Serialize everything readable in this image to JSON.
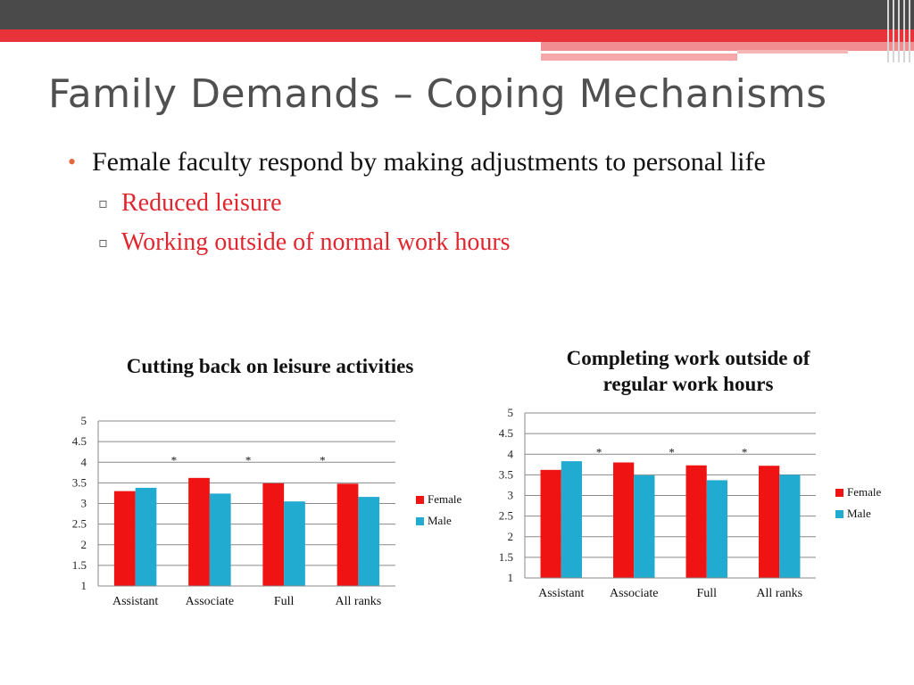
{
  "slide": {
    "title": "Family Demands – Coping Mechanisms",
    "bullet": "Female faculty respond by making adjustments to personal life",
    "sub_bullets": [
      "Reduced leisure",
      "Working outside of normal work hours"
    ]
  },
  "colors": {
    "female": "#ef1313",
    "male": "#22abd0",
    "accent_red": "#e0262f",
    "bullet_orange": "#e5663c"
  },
  "chart_data": [
    {
      "type": "bar",
      "title": "Cutting back on leisure activities",
      "categories": [
        "Assistant",
        "Associate",
        "Full",
        "All ranks"
      ],
      "series": [
        {
          "name": "Female",
          "values": [
            3.3,
            3.62,
            3.49,
            3.48
          ]
        },
        {
          "name": "Male",
          "values": [
            3.38,
            3.24,
            3.05,
            3.16
          ]
        }
      ],
      "ylim": [
        1,
        5
      ],
      "yticks": [
        "1",
        "1.5",
        "2",
        "2.5",
        "3",
        "3.5",
        "4",
        "4.5",
        "5"
      ],
      "annotations": [
        "",
        "*",
        "*",
        "*"
      ],
      "legend": "right",
      "grid": true
    },
    {
      "type": "bar",
      "title": "Completing work outside of regular work hours",
      "categories": [
        "Assistant",
        "Associate",
        "Full",
        "All ranks"
      ],
      "series": [
        {
          "name": "Female",
          "values": [
            3.62,
            3.8,
            3.73,
            3.72
          ]
        },
        {
          "name": "Male",
          "values": [
            3.83,
            3.49,
            3.37,
            3.5
          ]
        }
      ],
      "ylim": [
        1,
        5
      ],
      "yticks": [
        "1",
        "1.5",
        "2",
        "2.5",
        "3",
        "3.5",
        "4",
        "4.5",
        "5"
      ],
      "annotations": [
        "",
        "*",
        "*",
        "*"
      ],
      "legend": "right",
      "grid": true
    }
  ]
}
